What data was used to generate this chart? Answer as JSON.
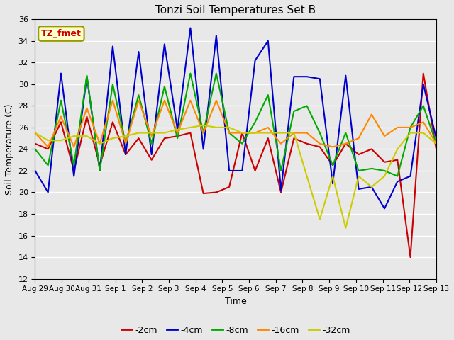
{
  "title": "Tonzi Soil Temperatures Set B",
  "xlabel": "Time",
  "ylabel": "Soil Temperature (C)",
  "ylim": [
    12,
    36
  ],
  "background_color": "#e8e8e8",
  "annotation_text": "TZ_fmet",
  "annotation_color": "#cc0000",
  "annotation_bg": "#ffffcc",
  "annotation_border": "#999900",
  "x_labels": [
    "Aug 29",
    "Aug 30",
    "Aug 31",
    "Sep 1",
    "Sep 2",
    "Sep 3",
    "Sep 4",
    "Sep 5",
    "Sep 6",
    "Sep 7",
    "Sep 8",
    "Sep 9",
    "Sep 10",
    "Sep 11",
    "Sep 12",
    "Sep 13"
  ],
  "neg2cm_color": "#cc0000",
  "neg4cm_color": "#0000cc",
  "neg8cm_color": "#00aa00",
  "neg16cm_color": "#ff8800",
  "neg32cm_color": "#cccc00",
  "neg2cm": [
    24.5,
    24.0,
    26.5,
    22.0,
    27.0,
    22.5,
    26.5,
    23.5,
    25.0,
    23.0,
    25.0,
    25.2,
    25.5,
    19.9,
    20.0,
    20.5,
    25.5,
    22.0,
    25.0,
    20.0,
    25.0,
    24.5,
    24.2,
    22.5,
    24.5,
    23.5,
    24.0,
    22.8,
    23.0,
    14.0,
    31.0,
    24.0
  ],
  "neg4cm": [
    22.0,
    20.0,
    31.0,
    21.5,
    30.7,
    22.0,
    33.5,
    23.5,
    33.0,
    23.5,
    33.7,
    25.8,
    35.2,
    24.0,
    34.5,
    22.0,
    22.0,
    32.2,
    34.0,
    20.2,
    30.7,
    30.7,
    30.5,
    20.8,
    30.8,
    20.3,
    20.5,
    18.5,
    21.0,
    21.5,
    30.0,
    25.0
  ],
  "neg8cm": [
    24.0,
    22.5,
    28.5,
    22.5,
    30.8,
    22.0,
    30.0,
    24.5,
    29.0,
    24.5,
    29.8,
    25.0,
    31.0,
    25.5,
    31.0,
    25.5,
    24.5,
    26.5,
    29.0,
    22.0,
    27.5,
    28.0,
    25.5,
    22.5,
    25.5,
    22.0,
    22.2,
    22.0,
    21.5,
    26.0,
    28.0,
    24.5
  ],
  "neg16cm": [
    25.5,
    24.2,
    27.0,
    24.2,
    27.8,
    24.5,
    28.5,
    24.5,
    28.5,
    25.2,
    28.5,
    25.5,
    28.5,
    25.5,
    28.5,
    25.5,
    25.5,
    25.5,
    26.0,
    24.5,
    25.5,
    25.5,
    24.5,
    24.2,
    24.5,
    25.0,
    27.2,
    25.2,
    26.0,
    26.0,
    26.5,
    24.5
  ],
  "neg32cm": [
    25.5,
    24.8,
    24.8,
    25.2,
    25.2,
    24.5,
    25.0,
    25.2,
    25.5,
    25.5,
    25.5,
    25.8,
    26.0,
    26.2,
    26.0,
    26.0,
    25.5,
    25.5,
    25.5,
    25.5,
    25.5,
    21.5,
    17.5,
    21.5,
    16.7,
    21.5,
    20.5,
    21.5,
    24.0,
    25.5,
    25.5,
    24.5
  ]
}
